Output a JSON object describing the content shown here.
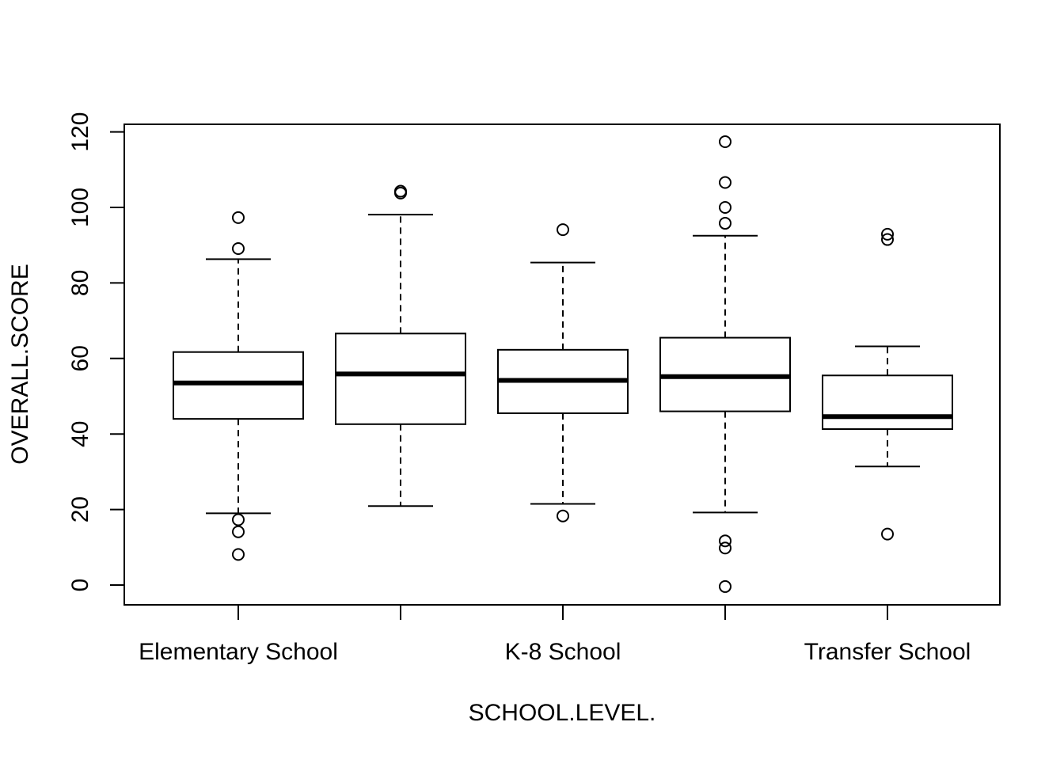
{
  "chart_data": {
    "type": "boxplot",
    "title": "",
    "xlabel": "SCHOOL.LEVEL.",
    "ylabel": "OVERALL.SCORE",
    "ylim": [
      -5,
      122
    ],
    "y_ticks": [
      0,
      20,
      40,
      60,
      80,
      100,
      120
    ],
    "x_tick_labels": [
      "Elementary School",
      "",
      "K-8 School",
      "",
      "Transfer School"
    ],
    "grid": false,
    "groups": [
      {
        "label": "Elementary School",
        "whisker_low": 19,
        "q1": 44,
        "median": 53.5,
        "q3": 61.7,
        "whisker_high": 86.3,
        "outliers": [
          97.3,
          89.1,
          17.3,
          14.1,
          8.1
        ]
      },
      {
        "label": "",
        "whisker_low": 20.9,
        "q1": 42.6,
        "median": 55.9,
        "q3": 66.6,
        "whisker_high": 98.1,
        "outliers": [
          104.3,
          103.8
        ]
      },
      {
        "label": "K-8 School",
        "whisker_low": 21.5,
        "q1": 45.5,
        "median": 54.2,
        "q3": 62.3,
        "whisker_high": 85.4,
        "outliers": [
          94.1,
          18.3
        ]
      },
      {
        "label": "",
        "whisker_low": 19.2,
        "q1": 46,
        "median": 55.2,
        "q3": 65.5,
        "whisker_high": 92.5,
        "outliers": [
          117.4,
          106.6,
          100,
          95.8,
          11.7,
          9.8,
          -0.4
        ]
      },
      {
        "label": "Transfer School",
        "whisker_low": 31.4,
        "q1": 41.3,
        "median": 44.6,
        "q3": 55.5,
        "whisker_high": 63.2,
        "outliers": [
          92.9,
          91.5,
          13.5
        ]
      }
    ]
  },
  "colors": {
    "stroke": "#000000",
    "background": "#ffffff",
    "box_fill": "#ffffff"
  }
}
